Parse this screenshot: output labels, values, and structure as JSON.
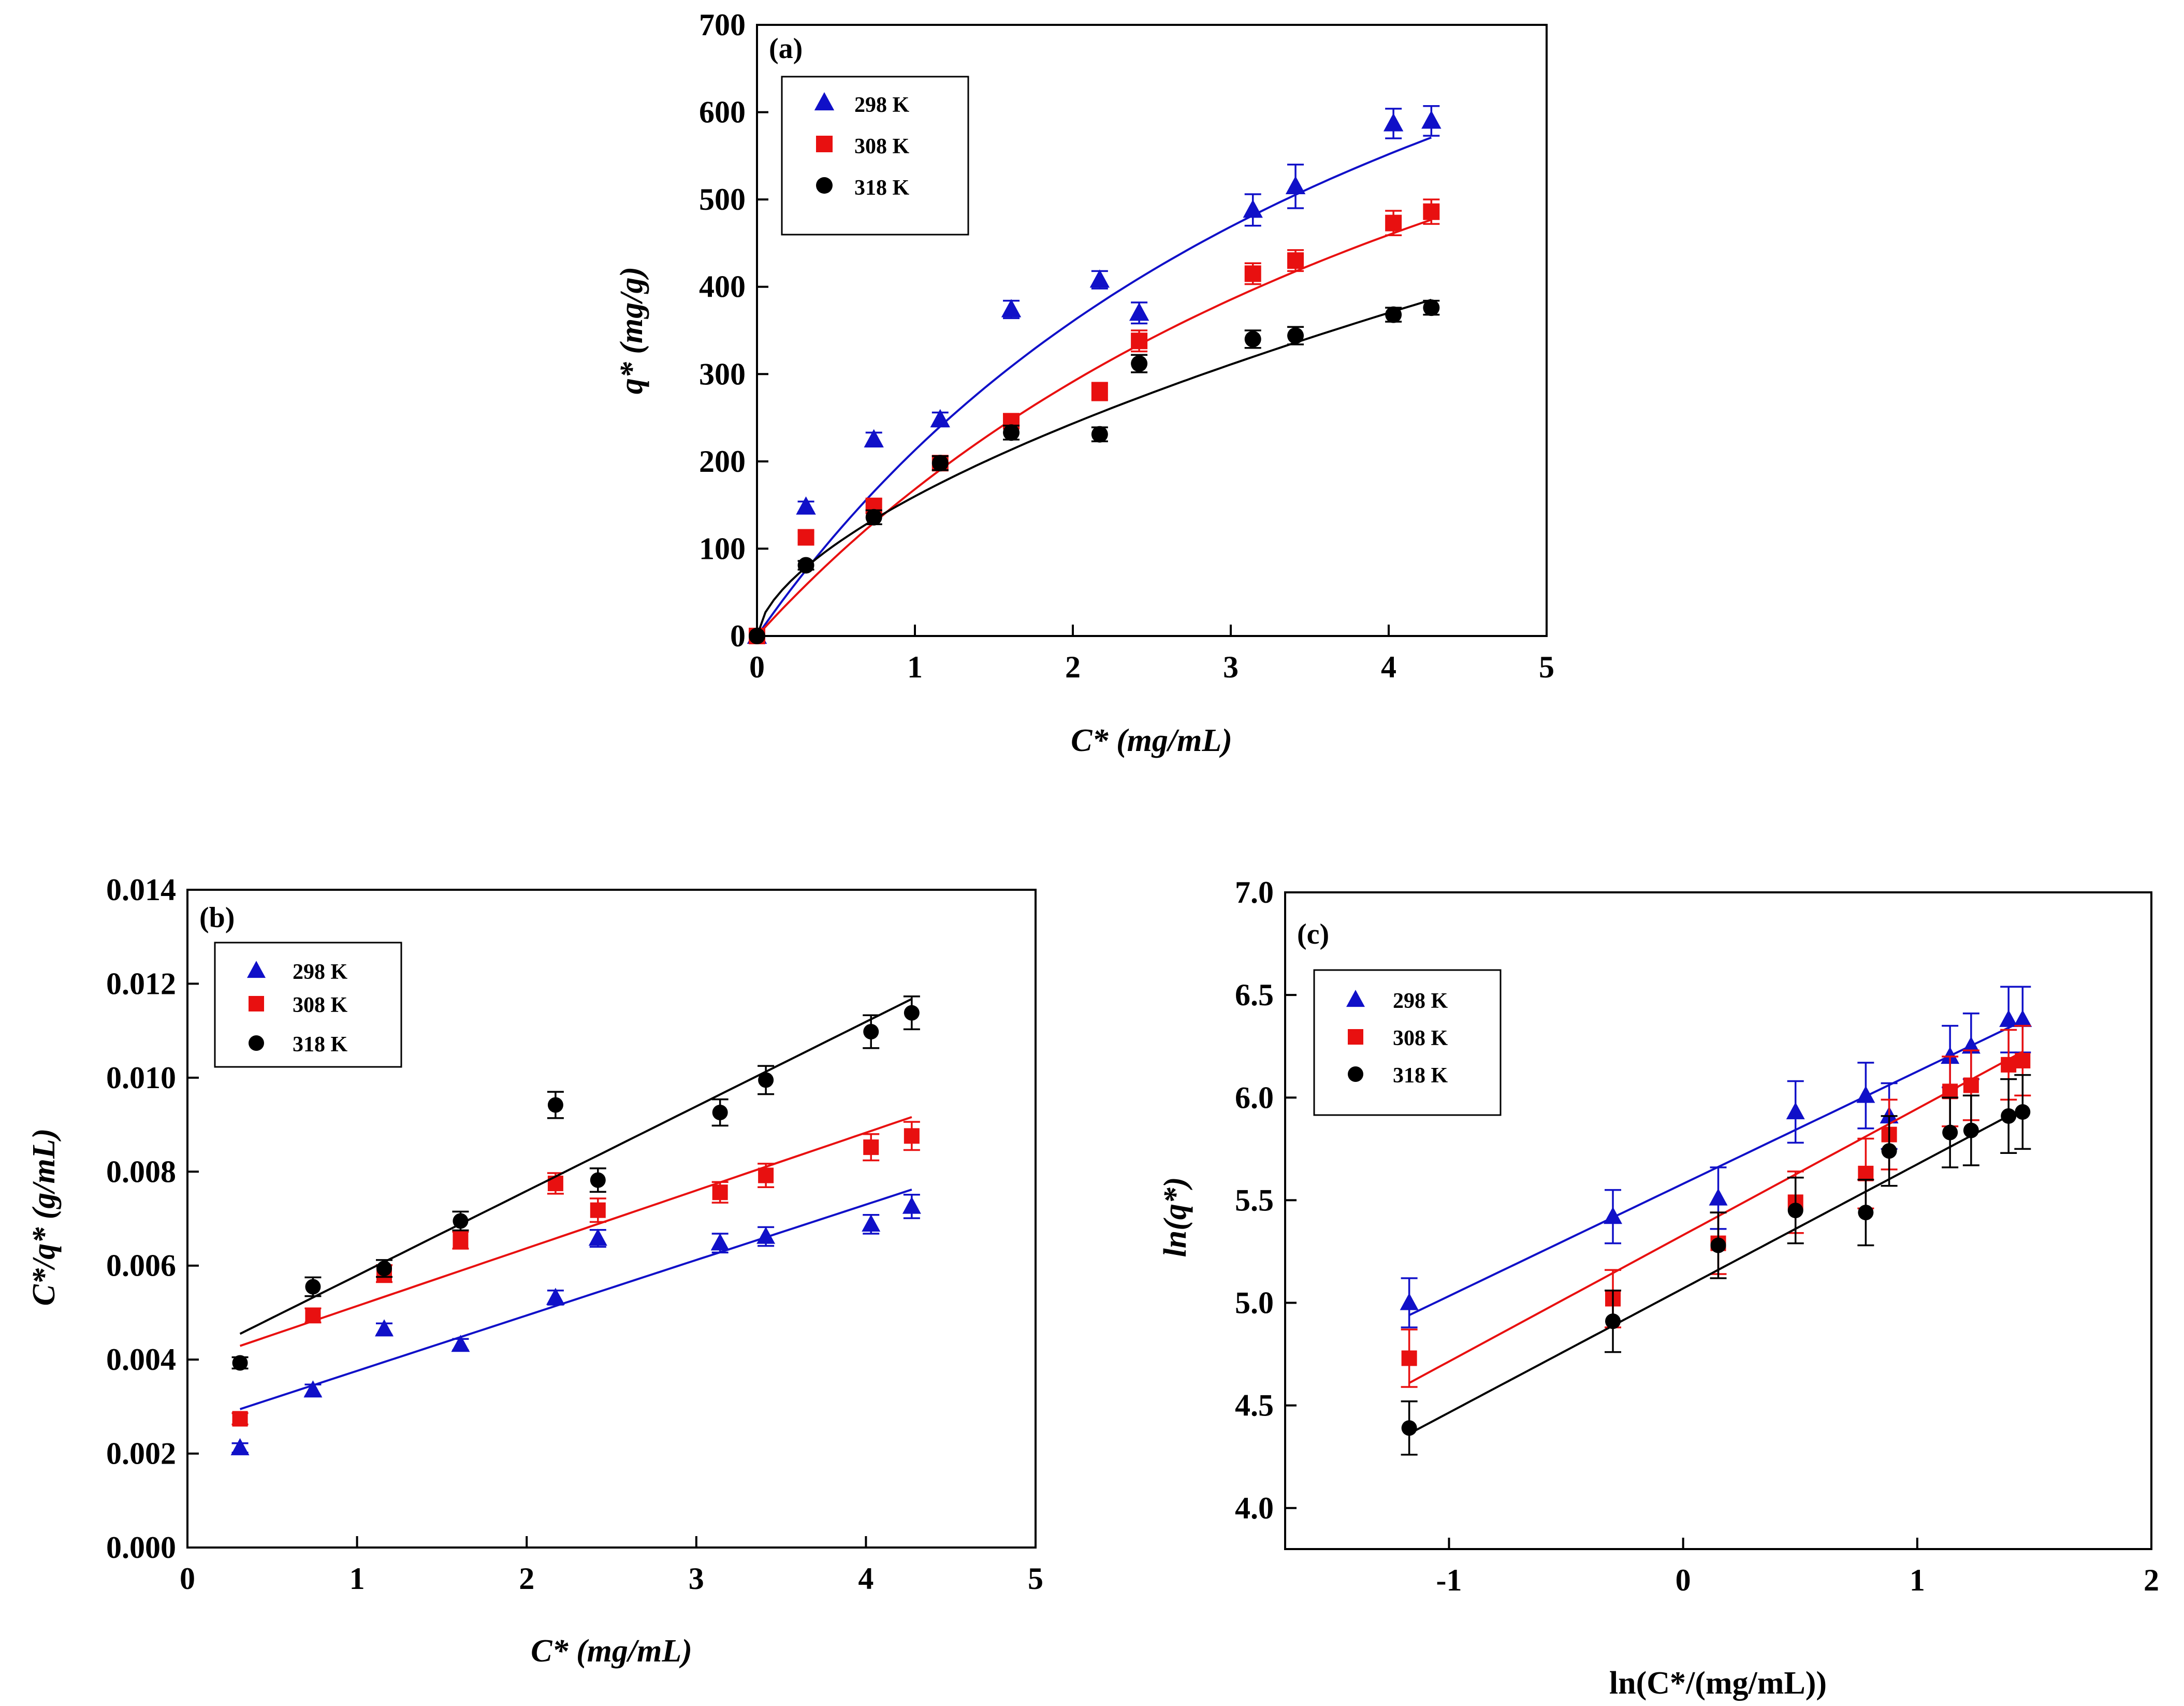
{
  "colors": {
    "s298": "#1010c8",
    "s308": "#e81010",
    "s318": "#000000"
  },
  "legend": [
    "298 K",
    "308 K",
    "318 K"
  ],
  "chart_data": [
    {
      "id": "a",
      "type": "scatter",
      "panel_label": "(a)",
      "title": "",
      "xlabel": "C* (mg/mL)",
      "ylabel": "q* (mg/g)",
      "xlim": [
        0,
        5
      ],
      "ylim": [
        0,
        700
      ],
      "xticks": [
        0,
        1,
        2,
        3,
        4,
        5
      ],
      "yticks": [
        0,
        100,
        200,
        300,
        400,
        500,
        600,
        700
      ],
      "xtick_labels": [
        "0",
        "1",
        "2",
        "3",
        "4",
        "5"
      ],
      "ytick_labels": [
        "0",
        "100",
        "200",
        "300",
        "400",
        "500",
        "600",
        "700"
      ],
      "legend_position": "top-left",
      "series": [
        {
          "name": "298 K",
          "marker": "triangle",
          "x": [
            0,
            0.31,
            0.74,
            1.16,
            1.61,
            2.17,
            2.42,
            3.14,
            3.41,
            4.03,
            4.27
          ],
          "y": [
            0,
            148,
            225,
            248,
            374,
            408,
            370,
            488,
            515,
            587,
            590
          ],
          "err": [
            0,
            6,
            8,
            8,
            10,
            10,
            12,
            18,
            25,
            17,
            17
          ],
          "fit": {
            "model": "langmuir",
            "qm": 1176,
            "K": 0.221
          }
        },
        {
          "name": "308 K",
          "marker": "square",
          "x": [
            0,
            0.31,
            0.74,
            1.16,
            1.61,
            2.17,
            2.42,
            3.14,
            3.41,
            4.03,
            4.27
          ],
          "y": [
            0,
            113,
            149,
            198,
            246,
            280,
            338,
            415,
            430,
            473,
            486
          ],
          "err": [
            0,
            6,
            8,
            8,
            8,
            10,
            12,
            12,
            12,
            14,
            14
          ],
          "fit": {
            "model": "langmuir",
            "qm": 1087,
            "K": 0.183
          }
        },
        {
          "name": "318 K",
          "marker": "circle",
          "x": [
            0,
            0.31,
            0.74,
            1.16,
            1.61,
            2.17,
            2.42,
            3.14,
            3.41,
            4.03,
            4.27
          ],
          "y": [
            0,
            81,
            136,
            198,
            233,
            231,
            312,
            340,
            344,
            368,
            376
          ],
          "err": [
            0,
            5,
            8,
            8,
            8,
            8,
            10,
            10,
            10,
            8,
            8
          ],
          "fit": {
            "model": "power",
            "a": 160,
            "b": 0.605
          }
        }
      ]
    },
    {
      "id": "b",
      "type": "scatter",
      "panel_label": "(b)",
      "title": "",
      "xlabel": "C* (mg/mL)",
      "ylabel": "C*/q* (g/mL)",
      "xlim": [
        0,
        5
      ],
      "ylim": [
        0,
        0.014
      ],
      "xticks": [
        0,
        1,
        2,
        3,
        4,
        5
      ],
      "yticks": [
        0,
        0.002,
        0.004,
        0.006,
        0.008,
        0.01,
        0.012,
        0.014
      ],
      "xtick_labels": [
        "0",
        "1",
        "2",
        "3",
        "4",
        "5"
      ],
      "ytick_labels": [
        "0.000",
        "0.002",
        "0.004",
        "0.006",
        "0.008",
        "0.010",
        "0.012",
        "0.014"
      ],
      "legend_position": "top-left",
      "series": [
        {
          "name": "298 K",
          "marker": "triangle",
          "x": [
            0.31,
            0.74,
            1.16,
            1.61,
            2.17,
            2.42,
            3.14,
            3.41,
            4.03,
            4.27
          ],
          "y": [
            0.00212,
            0.00335,
            0.00465,
            0.00432,
            0.00532,
            0.00658,
            0.00648,
            0.00662,
            0.00688,
            0.00726
          ],
          "err": [
            0.0001,
            0.00012,
            0.00012,
            0.00012,
            0.00015,
            0.00018,
            0.0002,
            0.0002,
            0.0002,
            0.00025
          ],
          "fit": {
            "model": "linear",
            "slope": 0.00118,
            "intercept": 0.00258
          }
        },
        {
          "name": "308 K",
          "marker": "square",
          "x": [
            0.31,
            0.74,
            1.16,
            1.61,
            2.17,
            2.42,
            3.14,
            3.41,
            4.03,
            4.27
          ],
          "y": [
            0.00274,
            0.00494,
            0.00583,
            0.00654,
            0.00775,
            0.00718,
            0.00756,
            0.00792,
            0.00852,
            0.00876
          ],
          "err": [
            0.00012,
            0.00015,
            0.00018,
            0.00018,
            0.00022,
            0.00025,
            0.00022,
            0.00025,
            0.00028,
            0.0003
          ],
          "fit": {
            "model": "linear",
            "slope": 0.00123,
            "intercept": 0.00391
          }
        },
        {
          "name": "318 K",
          "marker": "circle",
          "x": [
            0.31,
            0.74,
            1.16,
            1.61,
            2.17,
            2.42,
            3.14,
            3.41,
            4.03,
            4.27
          ],
          "y": [
            0.00393,
            0.00555,
            0.00594,
            0.00695,
            0.00942,
            0.00782,
            0.00926,
            0.00995,
            0.01098,
            0.01138
          ],
          "err": [
            0.00012,
            0.0002,
            0.00018,
            0.0002,
            0.00028,
            0.00025,
            0.00028,
            0.0003,
            0.00035,
            0.00035
          ],
          "fit": {
            "model": "linear",
            "slope": 0.0018,
            "intercept": 0.00399
          }
        }
      ]
    },
    {
      "id": "c",
      "type": "scatter",
      "panel_label": "(c)",
      "title": "",
      "xlabel": "ln(C*/(mg/mL))",
      "ylabel": "ln(q*)",
      "xlim": [
        -1.7,
        2
      ],
      "ylim": [
        3.8,
        7.0
      ],
      "xticks": [
        -1,
        0,
        1,
        2
      ],
      "yticks": [
        4.0,
        4.5,
        5.0,
        5.5,
        6.0,
        6.5,
        7.0
      ],
      "xtick_labels": [
        "-1",
        "0",
        "1",
        "2"
      ],
      "ytick_labels": [
        "4.0",
        "4.5",
        "5.0",
        "5.5",
        "6.0",
        "6.5",
        "7.0"
      ],
      "legend_position": "top-left",
      "series": [
        {
          "name": "298 K",
          "marker": "triangle",
          "x": [
            -1.17,
            -0.3,
            0.15,
            0.48,
            0.78,
            0.88,
            1.14,
            1.23,
            1.39,
            1.45
          ],
          "y": [
            5.0,
            5.42,
            5.51,
            5.93,
            6.01,
            5.91,
            6.2,
            6.25,
            6.38,
            6.38
          ],
          "err": [
            0.12,
            0.13,
            0.15,
            0.15,
            0.16,
            0.16,
            0.15,
            0.16,
            0.16,
            0.16
          ],
          "fit": {
            "model": "linear",
            "slope": 0.547,
            "intercept": 5.58
          }
        },
        {
          "name": "308 K",
          "marker": "square",
          "x": [
            -1.17,
            -0.3,
            0.15,
            0.48,
            0.78,
            0.88,
            1.14,
            1.23,
            1.39,
            1.45
          ],
          "y": [
            4.73,
            5.02,
            5.29,
            5.49,
            5.63,
            5.82,
            6.03,
            6.06,
            6.16,
            6.18
          ],
          "err": [
            0.14,
            0.14,
            0.15,
            0.15,
            0.17,
            0.17,
            0.17,
            0.17,
            0.17,
            0.17
          ],
          "fit": {
            "model": "linear",
            "slope": 0.616,
            "intercept": 5.33
          }
        },
        {
          "name": "318 K",
          "marker": "circle",
          "x": [
            -1.17,
            -0.3,
            0.15,
            0.48,
            0.78,
            0.88,
            1.14,
            1.23,
            1.39,
            1.45
          ],
          "y": [
            4.39,
            4.91,
            5.28,
            5.45,
            5.44,
            5.74,
            5.83,
            5.84,
            5.91,
            5.93
          ],
          "err": [
            0.13,
            0.15,
            0.16,
            0.16,
            0.16,
            0.17,
            0.17,
            0.17,
            0.18,
            0.18
          ],
          "fit": {
            "model": "linear",
            "slope": 0.605,
            "intercept": 5.07
          }
        }
      ]
    }
  ]
}
